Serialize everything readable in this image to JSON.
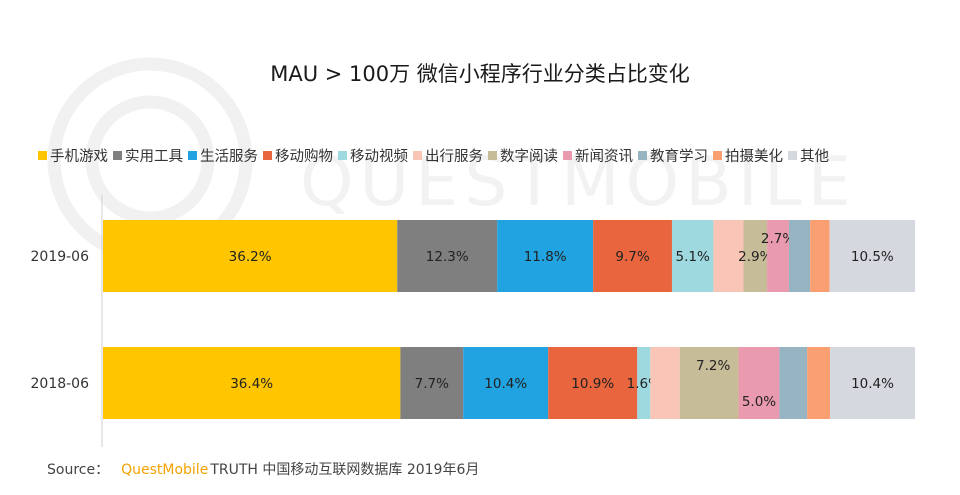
{
  "chart_data": {
    "type": "bar",
    "orientation": "horizontal",
    "stacked": true,
    "percent": true,
    "title": "MAU > 100万 微信小程序行业分类占比变化",
    "categories": [
      "2019-06",
      "2018-06"
    ],
    "series": [
      {
        "name": "手机游戏",
        "color": "#ffc600",
        "values": [
          36.2,
          36.4
        ],
        "labels": [
          "36.2%",
          "36.4%"
        ]
      },
      {
        "name": "实用工具",
        "color": "#7f7f7f",
        "values": [
          12.3,
          7.7
        ],
        "labels": [
          "12.3%",
          "7.7%"
        ]
      },
      {
        "name": "生活服务",
        "color": "#20a3e0",
        "values": [
          11.8,
          10.4
        ],
        "labels": [
          "11.8%",
          "10.4%"
        ]
      },
      {
        "name": "移动购物",
        "color": "#e9653e",
        "values": [
          9.7,
          10.9
        ],
        "labels": [
          "9.7%",
          "10.9%"
        ]
      },
      {
        "name": "移动视频",
        "color": "#9dd9df",
        "values": [
          5.1,
          1.6
        ],
        "labels": [
          "5.1%",
          "1.6%"
        ]
      },
      {
        "name": "出行服务",
        "color": "#f9c5b7",
        "values": [
          3.7,
          3.6
        ],
        "labels": [
          "",
          ""
        ]
      },
      {
        "name": "数字阅读",
        "color": "#c7bc98",
        "values": [
          2.9,
          7.2
        ],
        "labels": [
          "2.9%",
          "7.2%"
        ]
      },
      {
        "name": "新闻资讯",
        "color": "#e99aae",
        "values": [
          2.7,
          5.0
        ],
        "labels": [
          "2.7%",
          "5.0%"
        ]
      },
      {
        "name": "教育学习",
        "color": "#96b4c1",
        "values": [
          2.6,
          3.4
        ],
        "labels": [
          "",
          ""
        ]
      },
      {
        "name": "拍摄美化",
        "color": "#f99f72",
        "values": [
          2.4,
          2.8
        ],
        "labels": [
          "",
          ""
        ]
      },
      {
        "name": "其他",
        "color": "#d6d8df",
        "values": [
          10.5,
          10.4
        ],
        "labels": [
          "10.5%",
          "10.4%"
        ]
      }
    ],
    "xlim": [
      0,
      100
    ],
    "legend": "top"
  },
  "watermark_text": "QUESTMOBILE",
  "source": {
    "label": "Source：",
    "brand": "QuestMobile",
    "rest": "TRUTH 中国移动互联网数据库 2019年6月"
  }
}
